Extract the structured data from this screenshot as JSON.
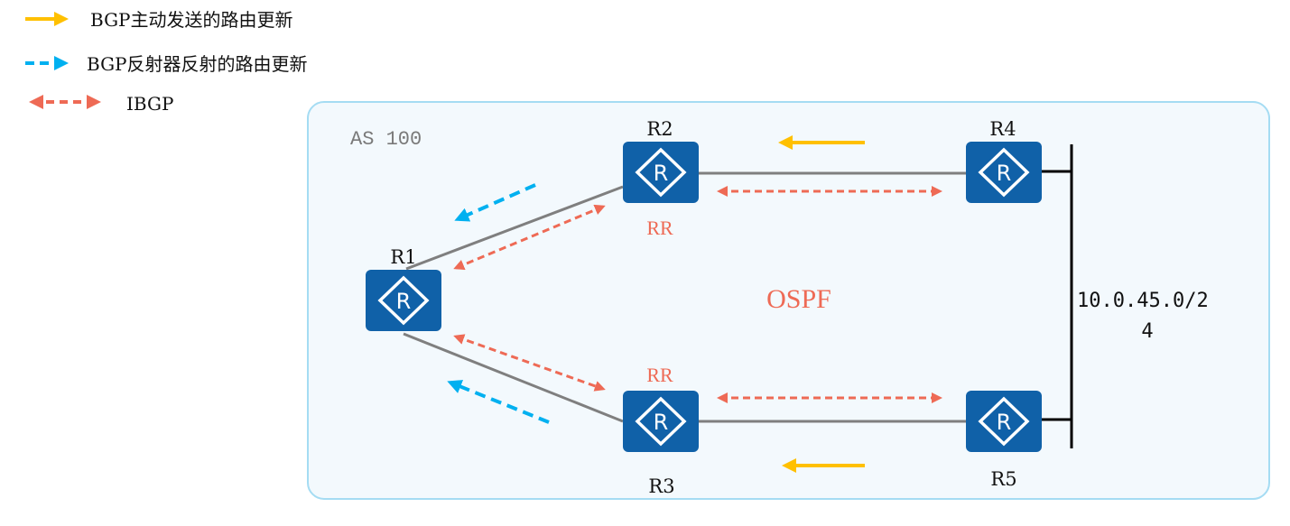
{
  "legend": [
    {
      "label": "BGP主动发送的路由更新",
      "style": "solid-arrow",
      "color": "#ffc000"
    },
    {
      "label": "BGP反射器反射的路由更新",
      "style": "dashed-arrow",
      "color": "#00b0f0"
    },
    {
      "label": "IBGP",
      "style": "dashed-double-arrow",
      "color": "#ee6a55"
    }
  ],
  "as_label": "AS 100",
  "protocol_label": "OSPF",
  "routers": {
    "r1": {
      "name": "R1"
    },
    "r2": {
      "name": "R2",
      "role": "RR"
    },
    "r3": {
      "name": "R3",
      "role": "RR"
    },
    "r4": {
      "name": "R4"
    },
    "r5": {
      "name": "R5"
    }
  },
  "network": {
    "line1": "10.0.45.0/2",
    "line2": "4"
  },
  "colors": {
    "router": "#1061a8",
    "as_bg": "#f3f9fd",
    "as_border": "#a5dcf3",
    "link": "#7f7f7f"
  }
}
